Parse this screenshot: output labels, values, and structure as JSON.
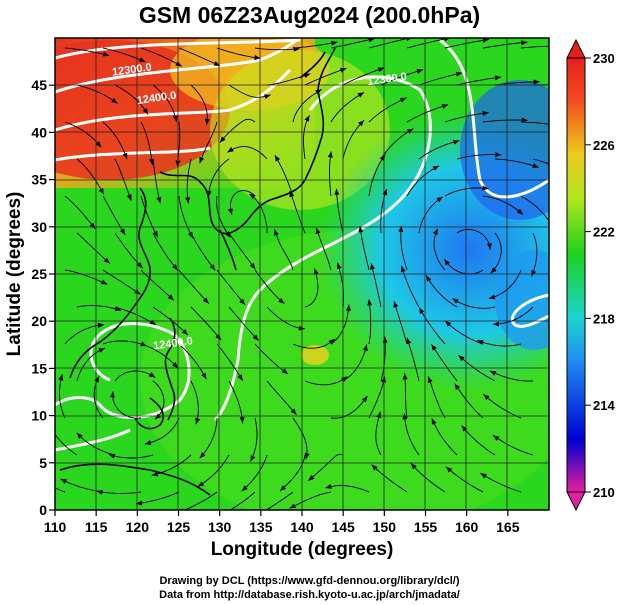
{
  "title": "GSM 06Z23Aug2024 (200.0hPa)",
  "map": {
    "x_axis": {
      "label": "Longitude (degrees)",
      "range": [
        110,
        170
      ],
      "ticks": [
        110,
        115,
        120,
        125,
        130,
        135,
        140,
        145,
        150,
        155,
        160,
        165
      ]
    },
    "y_axis": {
      "label": "Latitude  (degrees)",
      "range": [
        0,
        50
      ],
      "ticks": [
        0,
        5,
        10,
        15,
        20,
        25,
        30,
        35,
        40,
        45
      ]
    },
    "grid": true,
    "contour_labels": [
      {
        "text": "12300.0",
        "lon": 117,
        "lat": 46
      },
      {
        "text": "12400.0",
        "lon": 120,
        "lat": 43
      },
      {
        "text": "12300.0",
        "lon": 148,
        "lat": 45
      },
      {
        "text": "12400.0",
        "lon": 122,
        "lat": 17
      }
    ],
    "field_colors": {
      "warm": "#e8321e",
      "mid": "#2bd61e",
      "cool": "#1ea0f0"
    }
  },
  "colorbar": {
    "range": [
      210,
      230
    ],
    "ticks": [
      "230",
      "226",
      "222",
      "218",
      "214",
      "210"
    ],
    "stops": [
      "#e61ea0",
      "#0000d2",
      "#1e8cf0",
      "#1ed2d2",
      "#1ed21e",
      "#b4e61e",
      "#f0c81e",
      "#f0501e",
      "#e61e1e"
    ]
  },
  "credits": {
    "line1": "Drawing by DCL (https://www.gfd-dennou.org/library/dcl/)",
    "line2": "Data from http://database.rish.kyoto-u.ac.jp/arch/jmadata/"
  }
}
